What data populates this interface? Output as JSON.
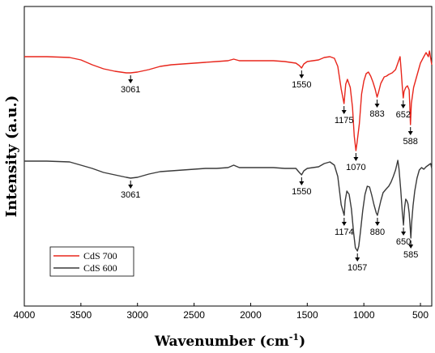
{
  "chart_data": {
    "type": "line",
    "xlabel": "Wavenumber (cm",
    "xlabel_sup": "-1",
    "xlabel_suffix": ")",
    "ylabel": "Intensity (a.u.)",
    "xlim": [
      4000,
      400
    ],
    "x_reversed": true,
    "x_ticks": [
      4000,
      3500,
      3000,
      2500,
      2000,
      1500,
      1000,
      500
    ],
    "y_ticks_shown": false,
    "grid": false,
    "legend_position": "bottom-left",
    "series": [
      {
        "name": "CdS 700",
        "color": "#e8261c",
        "points": [
          [
            4000,
            62
          ],
          [
            3800,
            62
          ],
          [
            3600,
            63
          ],
          [
            3500,
            66
          ],
          [
            3400,
            72
          ],
          [
            3300,
            77
          ],
          [
            3200,
            80
          ],
          [
            3100,
            82
          ],
          [
            3061,
            82
          ],
          [
            3000,
            81
          ],
          [
            2900,
            78
          ],
          [
            2800,
            74
          ],
          [
            2700,
            72
          ],
          [
            2600,
            71
          ],
          [
            2500,
            70
          ],
          [
            2400,
            69
          ],
          [
            2300,
            68
          ],
          [
            2200,
            67
          ],
          [
            2150,
            65
          ],
          [
            2100,
            67
          ],
          [
            2000,
            67
          ],
          [
            1900,
            67
          ],
          [
            1800,
            67
          ],
          [
            1700,
            68
          ],
          [
            1650,
            69
          ],
          [
            1600,
            70
          ],
          [
            1570,
            73
          ],
          [
            1550,
            76
          ],
          [
            1530,
            71
          ],
          [
            1500,
            68
          ],
          [
            1450,
            67
          ],
          [
            1400,
            66
          ],
          [
            1350,
            63
          ],
          [
            1300,
            62
          ],
          [
            1260,
            64
          ],
          [
            1230,
            74
          ],
          [
            1200,
            102
          ],
          [
            1175,
            120
          ],
          [
            1160,
            96
          ],
          [
            1145,
            90
          ],
          [
            1120,
            100
          ],
          [
            1100,
            125
          ],
          [
            1085,
            160
          ],
          [
            1070,
            178
          ],
          [
            1060,
            168
          ],
          [
            1040,
            145
          ],
          [
            1020,
            108
          ],
          [
            1000,
            92
          ],
          [
            980,
            83
          ],
          [
            960,
            81
          ],
          [
            940,
            86
          ],
          [
            920,
            93
          ],
          [
            900,
            102
          ],
          [
            883,
            112
          ],
          [
            870,
            106
          ],
          [
            850,
            95
          ],
          [
            820,
            87
          ],
          [
            800,
            86
          ],
          [
            780,
            84
          ],
          [
            750,
            82
          ],
          [
            720,
            78
          ],
          [
            700,
            70
          ],
          [
            680,
            62
          ],
          [
            670,
            80
          ],
          [
            660,
            100
          ],
          [
            652,
            113
          ],
          [
            645,
            105
          ],
          [
            630,
            100
          ],
          [
            615,
            98
          ],
          [
            600,
            103
          ],
          [
            595,
            120
          ],
          [
            588,
            146
          ],
          [
            580,
            120
          ],
          [
            570,
            110
          ],
          [
            560,
            100
          ],
          [
            540,
            90
          ],
          [
            520,
            80
          ],
          [
            500,
            70
          ],
          [
            470,
            62
          ],
          [
            450,
            57
          ],
          [
            430,
            62
          ],
          [
            420,
            55
          ],
          [
            400,
            72
          ]
        ]
      },
      {
        "name": "CdS 600",
        "color": "#3a3a3a",
        "points": [
          [
            4000,
            191
          ],
          [
            3800,
            191
          ],
          [
            3600,
            192
          ],
          [
            3500,
            196
          ],
          [
            3400,
            200
          ],
          [
            3300,
            205
          ],
          [
            3200,
            208
          ],
          [
            3100,
            211
          ],
          [
            3061,
            212
          ],
          [
            3000,
            211
          ],
          [
            2900,
            207
          ],
          [
            2800,
            204
          ],
          [
            2700,
            203
          ],
          [
            2600,
            202
          ],
          [
            2500,
            201
          ],
          [
            2400,
            200
          ],
          [
            2300,
            200
          ],
          [
            2200,
            199
          ],
          [
            2150,
            196
          ],
          [
            2100,
            199
          ],
          [
            2000,
            199
          ],
          [
            1900,
            199
          ],
          [
            1800,
            199
          ],
          [
            1700,
            200
          ],
          [
            1650,
            200
          ],
          [
            1600,
            200
          ],
          [
            1570,
            205
          ],
          [
            1550,
            208
          ],
          [
            1530,
            203
          ],
          [
            1500,
            200
          ],
          [
            1450,
            199
          ],
          [
            1400,
            198
          ],
          [
            1350,
            194
          ],
          [
            1300,
            192
          ],
          [
            1260,
            196
          ],
          [
            1230,
            210
          ],
          [
            1200,
            245
          ],
          [
            1174,
            258
          ],
          [
            1165,
            240
          ],
          [
            1150,
            228
          ],
          [
            1130,
            232
          ],
          [
            1110,
            250
          ],
          [
            1090,
            280
          ],
          [
            1075,
            298
          ],
          [
            1057,
            302
          ],
          [
            1045,
            296
          ],
          [
            1030,
            278
          ],
          [
            1010,
            252
          ],
          [
            990,
            232
          ],
          [
            970,
            222
          ],
          [
            950,
            223
          ],
          [
            930,
            233
          ],
          [
            910,
            245
          ],
          [
            890,
            255
          ],
          [
            880,
            258
          ],
          [
            870,
            252
          ],
          [
            850,
            240
          ],
          [
            830,
            230
          ],
          [
            800,
            225
          ],
          [
            780,
            222
          ],
          [
            760,
            217
          ],
          [
            740,
            210
          ],
          [
            720,
            202
          ],
          [
            700,
            190
          ],
          [
            690,
            200
          ],
          [
            675,
            225
          ],
          [
            660,
            255
          ],
          [
            650,
            270
          ],
          [
            640,
            248
          ],
          [
            630,
            238
          ],
          [
            620,
            240
          ],
          [
            610,
            244
          ],
          [
            600,
            255
          ],
          [
            590,
            275
          ],
          [
            585,
            286
          ],
          [
            578,
            268
          ],
          [
            565,
            246
          ],
          [
            550,
            228
          ],
          [
            530,
            212
          ],
          [
            510,
            202
          ],
          [
            490,
            199
          ],
          [
            470,
            201
          ],
          [
            450,
            198
          ],
          [
            430,
            196
          ],
          [
            410,
            194
          ],
          [
            400,
            200
          ]
        ]
      }
    ],
    "annotations": [
      {
        "series": 0,
        "x": 3061,
        "label": "3061"
      },
      {
        "series": 0,
        "x": 1550,
        "label": "1550"
      },
      {
        "series": 0,
        "x": 1175,
        "label": "1175"
      },
      {
        "series": 0,
        "x": 1070,
        "label": "1070"
      },
      {
        "series": 0,
        "x": 883,
        "label": "883"
      },
      {
        "series": 0,
        "x": 652,
        "label": "652"
      },
      {
        "series": 0,
        "x": 588,
        "label": "588"
      },
      {
        "series": 1,
        "x": 3061,
        "label": "3061"
      },
      {
        "series": 1,
        "x": 1550,
        "label": "1550"
      },
      {
        "series": 1,
        "x": 1174,
        "label": "1174"
      },
      {
        "series": 1,
        "x": 1057,
        "label": "1057"
      },
      {
        "series": 1,
        "x": 880,
        "label": "880"
      },
      {
        "series": 1,
        "x": 650,
        "label": "650"
      },
      {
        "series": 1,
        "x": 585,
        "label": "585"
      }
    ]
  }
}
